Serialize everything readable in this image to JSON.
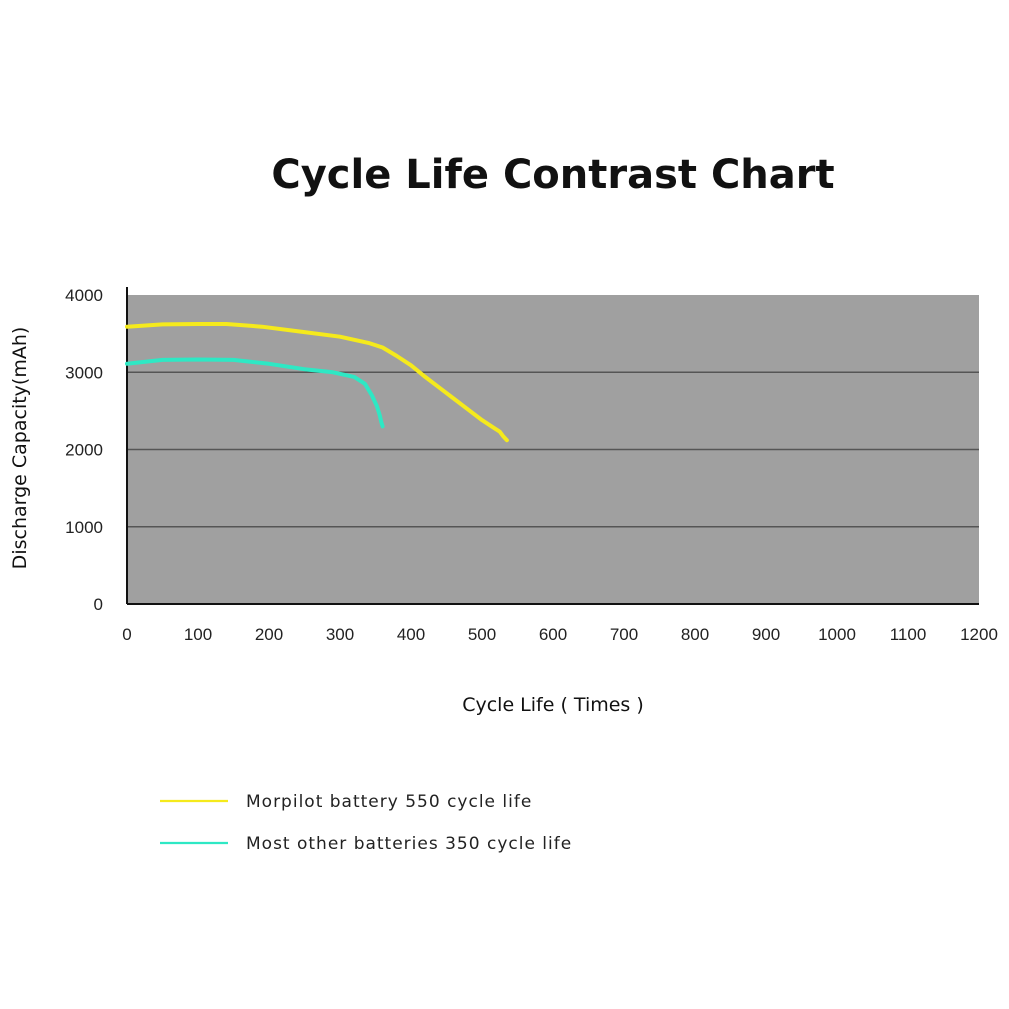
{
  "chart_data": {
    "type": "line",
    "title": "Cycle Life Contrast Chart",
    "xlabel": "Cycle Life ( Times )",
    "ylabel": "Discharge Capacity(mAh)",
    "xlim": [
      0,
      1200
    ],
    "ylim": [
      0,
      4000
    ],
    "xticks": [
      "0",
      "100",
      "200",
      "300",
      "400",
      "500",
      "600",
      "700",
      "800",
      "900",
      "1000",
      "1100",
      "1200"
    ],
    "yticks": [
      "0",
      "1000",
      "2000",
      "3000",
      "4000"
    ],
    "grid": true,
    "plot_background": "#a0a0a0",
    "legend_position": "bottom-left",
    "series": [
      {
        "name": "Morpilot battery 550 cycle life",
        "color": "#f5ea1c",
        "x": [
          0,
          50,
          100,
          140,
          190,
          250,
          300,
          340,
          360,
          380,
          400,
          420,
          440,
          460,
          480,
          500,
          515,
          525,
          530,
          535
        ],
        "y": [
          3590,
          3620,
          3625,
          3625,
          3590,
          3520,
          3460,
          3380,
          3320,
          3210,
          3090,
          2940,
          2800,
          2660,
          2520,
          2380,
          2290,
          2230,
          2170,
          2120
        ]
      },
      {
        "name": "Most other batteries 350 cycle life",
        "color": "#2ee8c4",
        "x": [
          0,
          50,
          100,
          150,
          200,
          250,
          290,
          320,
          335,
          345,
          352,
          356,
          358,
          360
        ],
        "y": [
          3110,
          3160,
          3165,
          3160,
          3110,
          3040,
          3000,
          2940,
          2850,
          2700,
          2560,
          2440,
          2360,
          2300
        ]
      }
    ]
  }
}
